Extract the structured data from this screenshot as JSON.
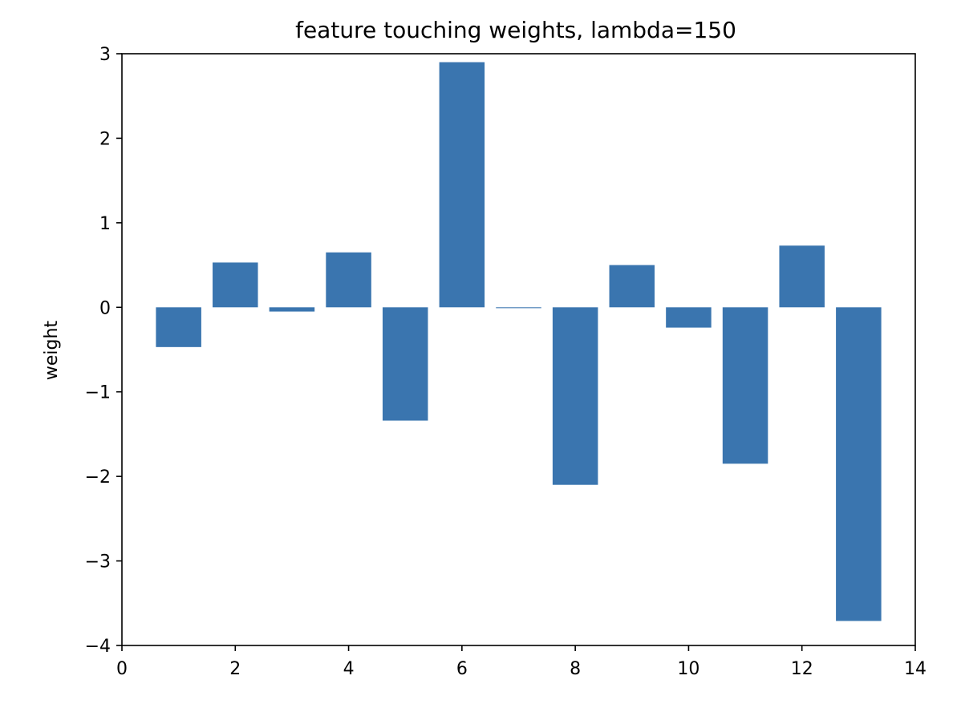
{
  "chart_data": {
    "type": "bar",
    "title": "feature touching weights, lambda=150",
    "xlabel": "",
    "ylabel": "weight",
    "x": [
      1,
      2,
      3,
      4,
      5,
      6,
      7,
      8,
      9,
      10,
      11,
      12,
      13
    ],
    "values": [
      -0.47,
      0.53,
      -0.05,
      0.65,
      -1.34,
      2.9,
      -0.01,
      -2.1,
      0.5,
      -0.24,
      -1.85,
      0.73,
      -3.71
    ],
    "xlim": [
      0,
      14
    ],
    "ylim": [
      -4,
      3
    ],
    "xticks": [
      0,
      2,
      4,
      6,
      8,
      10,
      12,
      14
    ],
    "yticks": [
      -4,
      -3,
      -2,
      -1,
      0,
      1,
      2,
      3
    ],
    "bar_width": 0.8,
    "grid": false,
    "bar_color": "#3a75af"
  }
}
